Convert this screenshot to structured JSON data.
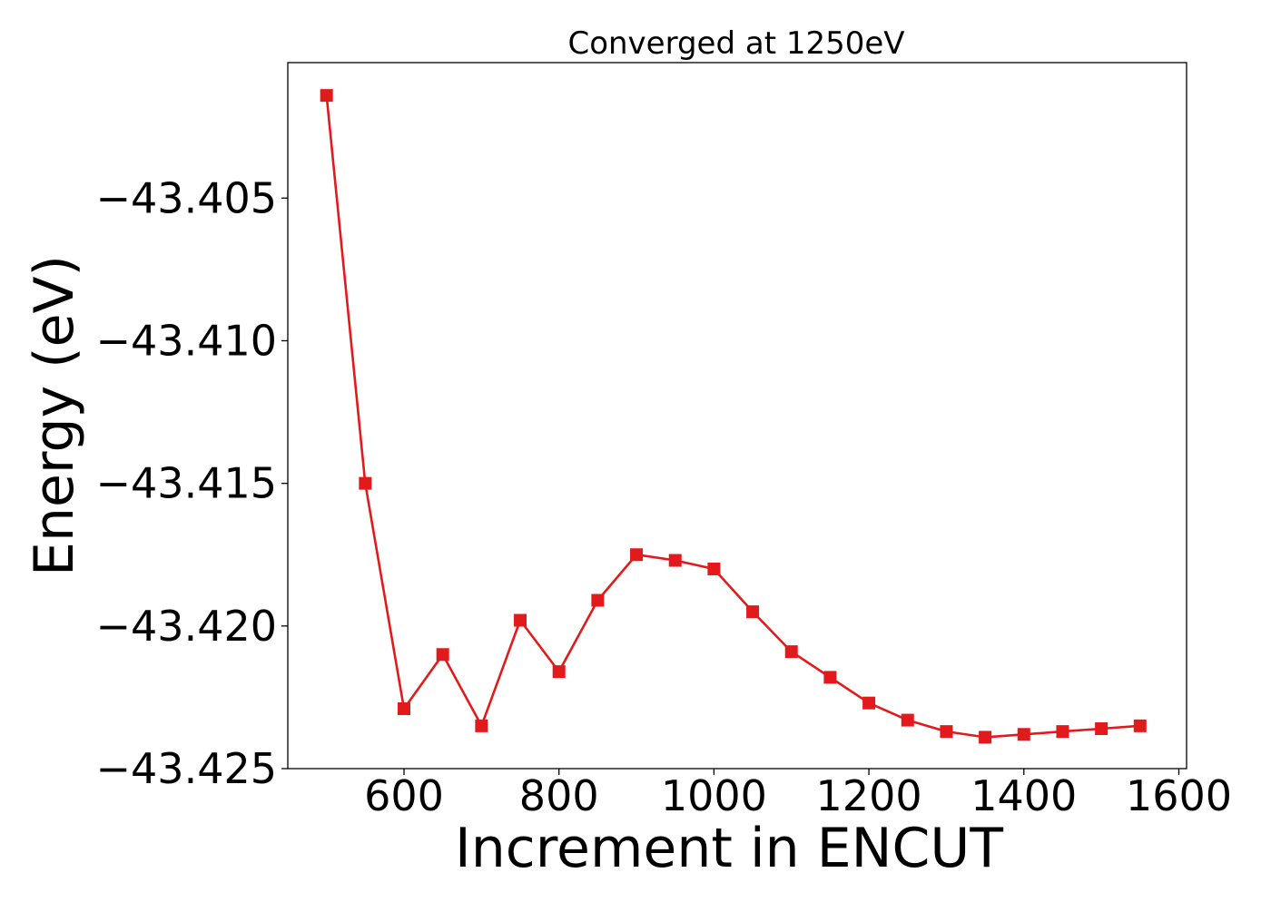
{
  "chart_data": {
    "type": "line",
    "title": "Converged at 1250eV",
    "xlabel": "Increment in ENCUT",
    "ylabel": "Energy (eV)",
    "xlim": [
      450,
      1610
    ],
    "ylim": [
      -43.425,
      -43.40025
    ],
    "xticks": [
      600,
      800,
      1000,
      1200,
      1400,
      1600
    ],
    "xtick_labels": [
      "600",
      "800",
      "1000",
      "1200",
      "1400",
      "1600"
    ],
    "yticks": [
      -43.405,
      -43.41,
      -43.415,
      -43.42,
      -43.425
    ],
    "ytick_labels": [
      "−43.405",
      "−43.410",
      "−43.415",
      "−43.420",
      "−43.425"
    ],
    "grid": false,
    "color": "#e31a1c",
    "marker": "square",
    "series": [
      {
        "x": [
          500,
          550,
          600,
          650,
          700,
          750,
          800,
          850,
          900,
          950,
          1000,
          1050,
          1100,
          1150,
          1200,
          1250,
          1300,
          1350,
          1400,
          1450,
          1500,
          1550
        ],
        "values": [
          -43.4014,
          -43.415,
          -43.4229,
          -43.421,
          -43.4235,
          -43.4198,
          -43.4216,
          -43.4191,
          -43.4175,
          -43.4177,
          -43.418,
          -43.4195,
          -43.4209,
          -43.4218,
          -43.4227,
          -43.4233,
          -43.4237,
          -43.4239,
          -43.4238,
          -43.4237,
          -43.4236,
          -43.4235
        ]
      }
    ]
  }
}
